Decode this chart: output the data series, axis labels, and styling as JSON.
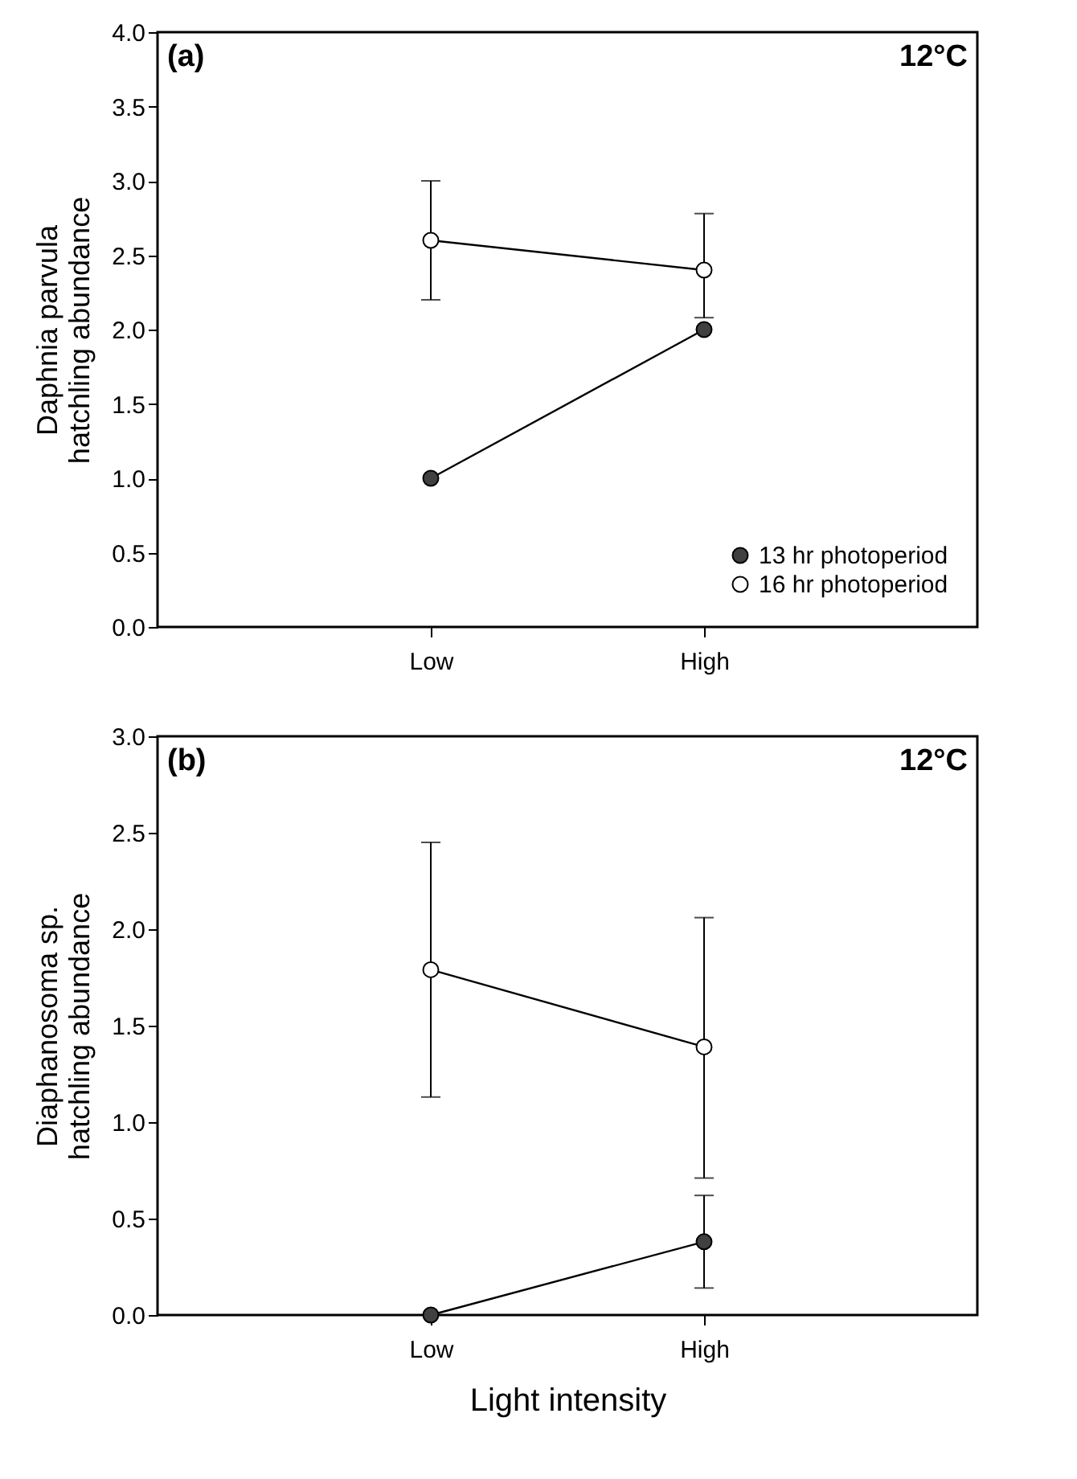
{
  "chart_data": [
    {
      "type": "line",
      "ylabel": "Daphnia parvula\nhatchling abundance",
      "categories": [
        "Low",
        "High"
      ],
      "ylim": [
        0,
        4
      ],
      "yticks": [
        {
          "value": 0,
          "label": "0.0"
        },
        {
          "value": 0.5,
          "label": "0.5"
        },
        {
          "value": 1,
          "label": "1.0"
        },
        {
          "value": 1.5,
          "label": "1.5"
        },
        {
          "value": 2,
          "label": "2.0"
        },
        {
          "value": 2.5,
          "label": "2.5"
        },
        {
          "value": 3,
          "label": "3.0"
        },
        {
          "value": 3.5,
          "label": "3.5"
        },
        {
          "value": 4,
          "label": "4.0"
        }
      ],
      "grid": false,
      "marker": "circle",
      "legend": "bottom right",
      "annotations": [
        "(a)",
        "12°C"
      ],
      "series": [
        {
          "name": "13 hr photoperiod",
          "color": "#404040",
          "values": [
            1.0,
            2.0
          ]
        },
        {
          "name": "16 hr photoperiod",
          "color": "#ffffff",
          "values": [
            2.6,
            2.4
          ],
          "errors": [
            [
              2.2,
              3.0
            ],
            [
              2.08,
              2.78
            ]
          ]
        }
      ]
    },
    {
      "type": "line",
      "xlabel": "Light intensity",
      "ylabel": "Diaphanosoma sp.\nhatchling abundance",
      "categories": [
        "Low",
        "High"
      ],
      "ylim": [
        0,
        3
      ],
      "yticks": [
        {
          "value": 0,
          "label": "0.0"
        },
        {
          "value": 0.5,
          "label": "0.5"
        },
        {
          "value": 1,
          "label": "1.0"
        },
        {
          "value": 1.5,
          "label": "1.5"
        },
        {
          "value": 2,
          "label": "2.0"
        },
        {
          "value": 2.5,
          "label": "2.5"
        },
        {
          "value": 3,
          "label": "3.0"
        }
      ],
      "grid": false,
      "marker": "circle",
      "legend": false,
      "annotations": [
        "(b)",
        "12°C"
      ],
      "series": [
        {
          "color": "#404040",
          "values": [
            0.0,
            0.38
          ],
          "errors": [
            null,
            [
              0.14,
              0.62
            ]
          ]
        },
        {
          "color": "#ffffff",
          "values": [
            1.79,
            1.39
          ],
          "errors": [
            [
              1.13,
              2.45
            ],
            [
              0.71,
              2.06
            ]
          ]
        }
      ]
    }
  ]
}
